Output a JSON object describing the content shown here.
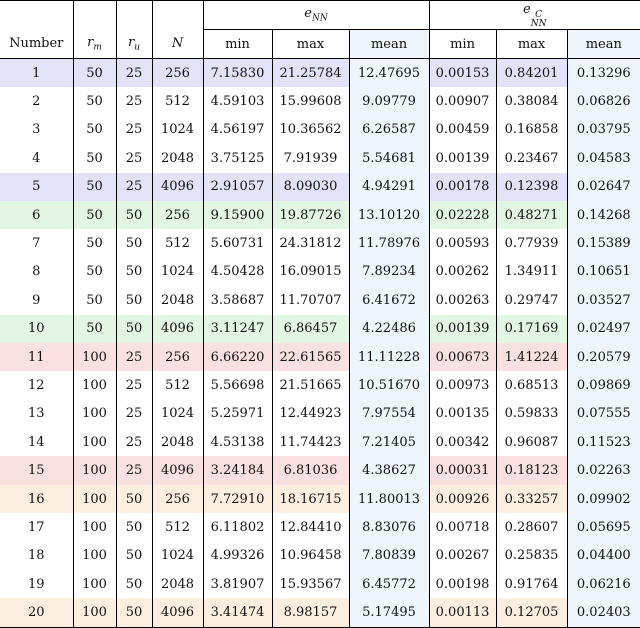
{
  "header": {
    "group_e": "e",
    "group_e_sub": "NN",
    "group_ec": "e",
    "group_ec_sup": "C",
    "group_ec_sub": "NN",
    "columns": [
      "Number",
      "r",
      "r",
      "N",
      "min",
      "max",
      "mean",
      "min",
      "max",
      "mean"
    ],
    "rm_sub": "m",
    "ru_sub": "u"
  },
  "highlight_colors": {
    "purple": "#e3e2f8",
    "green": "#e3f6e3",
    "pink": "#fbe0e2",
    "orange": "#fcefe0",
    "mean_column": "#eef5fb"
  },
  "rows": [
    {
      "n": "1",
      "rm": "50",
      "ru": "25",
      "N": "256",
      "min": "7.15830",
      "max": "21.25784",
      "mean": "12.47695",
      "cmin": "0.00153",
      "cmax": "0.84201",
      "cmean": "0.13296",
      "hl": "purple"
    },
    {
      "n": "2",
      "rm": "50",
      "ru": "25",
      "N": "512",
      "min": "4.59103",
      "max": "15.99608",
      "mean": "9.09779",
      "cmin": "0.00907",
      "cmax": "0.38084",
      "cmean": "0.06826",
      "hl": ""
    },
    {
      "n": "3",
      "rm": "50",
      "ru": "25",
      "N": "1024",
      "min": "4.56197",
      "max": "10.36562",
      "mean": "6.26587",
      "cmin": "0.00459",
      "cmax": "0.16858",
      "cmean": "0.03795",
      "hl": ""
    },
    {
      "n": "4",
      "rm": "50",
      "ru": "25",
      "N": "2048",
      "min": "3.75125",
      "max": "7.91939",
      "mean": "5.54681",
      "cmin": "0.00139",
      "cmax": "0.23467",
      "cmean": "0.04583",
      "hl": ""
    },
    {
      "n": "5",
      "rm": "50",
      "ru": "25",
      "N": "4096",
      "min": "2.91057",
      "max": "8.09030",
      "mean": "4.94291",
      "cmin": "0.00178",
      "cmax": "0.12398",
      "cmean": "0.02647",
      "hl": "purple"
    },
    {
      "n": "6",
      "rm": "50",
      "ru": "50",
      "N": "256",
      "min": "9.15900",
      "max": "19.87726",
      "mean": "13.10120",
      "cmin": "0.02228",
      "cmax": "0.48271",
      "cmean": "0.14268",
      "hl": "green"
    },
    {
      "n": "7",
      "rm": "50",
      "ru": "50",
      "N": "512",
      "min": "5.60731",
      "max": "24.31812",
      "mean": "11.78976",
      "cmin": "0.00593",
      "cmax": "0.77939",
      "cmean": "0.15389",
      "hl": ""
    },
    {
      "n": "8",
      "rm": "50",
      "ru": "50",
      "N": "1024",
      "min": "4.50428",
      "max": "16.09015",
      "mean": "7.89234",
      "cmin": "0.00262",
      "cmax": "1.34911",
      "cmean": "0.10651",
      "hl": ""
    },
    {
      "n": "9",
      "rm": "50",
      "ru": "50",
      "N": "2048",
      "min": "3.58687",
      "max": "11.70707",
      "mean": "6.41672",
      "cmin": "0.00263",
      "cmax": "0.29747",
      "cmean": "0.03527",
      "hl": ""
    },
    {
      "n": "10",
      "rm": "50",
      "ru": "50",
      "N": "4096",
      "min": "3.11247",
      "max": "6.86457",
      "mean": "4.22486",
      "cmin": "0.00139",
      "cmax": "0.17169",
      "cmean": "0.02497",
      "hl": "green"
    },
    {
      "n": "11",
      "rm": "100",
      "ru": "25",
      "N": "256",
      "min": "6.66220",
      "max": "22.61565",
      "mean": "11.11228",
      "cmin": "0.00673",
      "cmax": "1.41224",
      "cmean": "0.20579",
      "hl": "pink"
    },
    {
      "n": "12",
      "rm": "100",
      "ru": "25",
      "N": "512",
      "min": "5.56698",
      "max": "21.51665",
      "mean": "10.51670",
      "cmin": "0.00973",
      "cmax": "0.68513",
      "cmean": "0.09869",
      "hl": ""
    },
    {
      "n": "13",
      "rm": "100",
      "ru": "25",
      "N": "1024",
      "min": "5.25971",
      "max": "12.44923",
      "mean": "7.97554",
      "cmin": "0.00135",
      "cmax": "0.59833",
      "cmean": "0.07555",
      "hl": ""
    },
    {
      "n": "14",
      "rm": "100",
      "ru": "25",
      "N": "2048",
      "min": "4.53138",
      "max": "11.74423",
      "mean": "7.21405",
      "cmin": "0.00342",
      "cmax": "0.96087",
      "cmean": "0.11523",
      "hl": ""
    },
    {
      "n": "15",
      "rm": "100",
      "ru": "25",
      "N": "4096",
      "min": "3.24184",
      "max": "6.81036",
      "mean": "4.38627",
      "cmin": "0.00031",
      "cmax": "0.18123",
      "cmean": "0.02263",
      "hl": "pink"
    },
    {
      "n": "16",
      "rm": "100",
      "ru": "50",
      "N": "256",
      "min": "7.72910",
      "max": "18.16715",
      "mean": "11.80013",
      "cmin": "0.00926",
      "cmax": "0.33257",
      "cmean": "0.09902",
      "hl": "orange"
    },
    {
      "n": "17",
      "rm": "100",
      "ru": "50",
      "N": "512",
      "min": "6.11802",
      "max": "12.84410",
      "mean": "8.83076",
      "cmin": "0.00718",
      "cmax": "0.28607",
      "cmean": "0.05695",
      "hl": ""
    },
    {
      "n": "18",
      "rm": "100",
      "ru": "50",
      "N": "1024",
      "min": "4.99326",
      "max": "10.96458",
      "mean": "7.80839",
      "cmin": "0.00267",
      "cmax": "0.25835",
      "cmean": "0.04400",
      "hl": ""
    },
    {
      "n": "19",
      "rm": "100",
      "ru": "50",
      "N": "2048",
      "min": "3.81907",
      "max": "15.93567",
      "mean": "6.45772",
      "cmin": "0.00198",
      "cmax": "0.91764",
      "cmean": "0.06216",
      "hl": ""
    },
    {
      "n": "20",
      "rm": "100",
      "ru": "50",
      "N": "4096",
      "min": "3.41474",
      "max": "8.98157",
      "mean": "5.17495",
      "cmin": "0.00113",
      "cmax": "0.12705",
      "cmean": "0.02403",
      "hl": "orange"
    }
  ]
}
